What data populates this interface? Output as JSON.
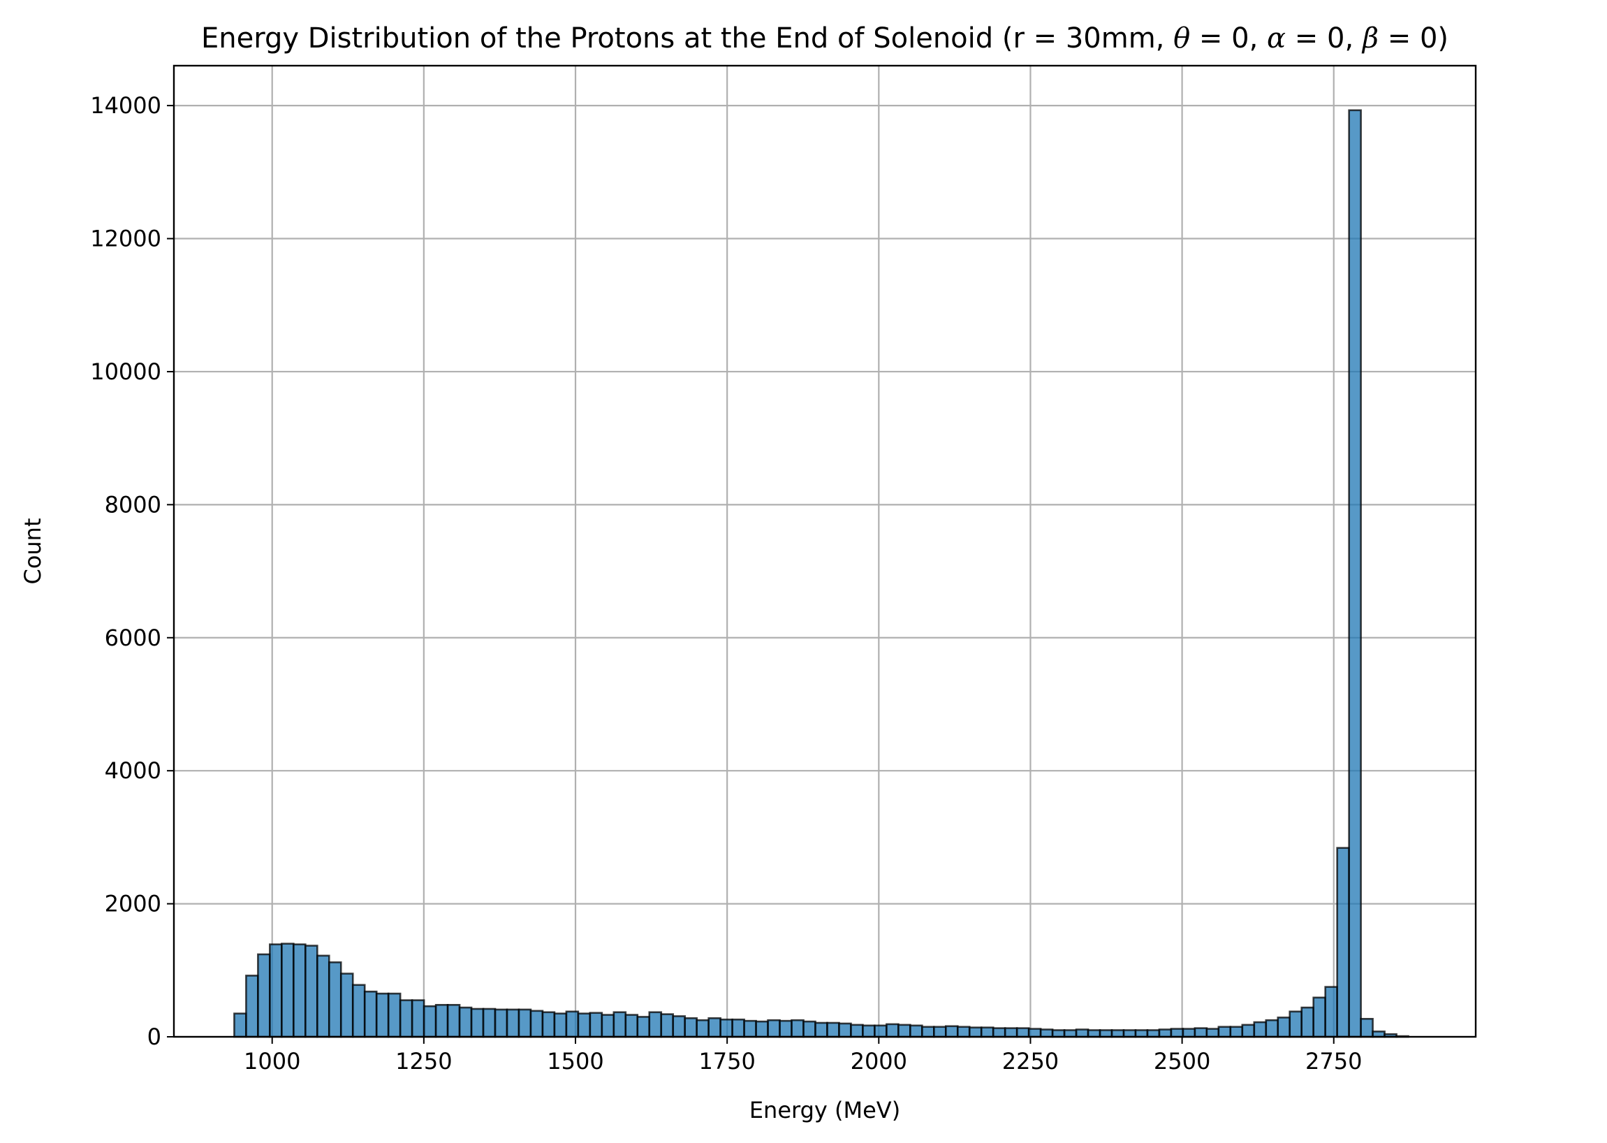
{
  "chart_data": {
    "type": "bar",
    "title_main": "Energy Distribution of the Protons at the End of Solenoid (r = 30mm, ",
    "title_theta": "θ",
    "title_alpha": "α",
    "title_beta": "β",
    "title_eq0": " = 0, ",
    "title_close": " = 0)",
    "xlabel": "Energy (MeV)",
    "ylabel": "Count",
    "xlim": [
      838,
      2984
    ],
    "ylim": [
      0,
      14600
    ],
    "xticks": [
      1000,
      1250,
      1500,
      1750,
      2000,
      2250,
      2500,
      2750
    ],
    "yticks": [
      0,
      2000,
      4000,
      6000,
      8000,
      10000,
      12000,
      14000
    ],
    "grid": true,
    "bin_start": 937.5,
    "bin_width": 19.55,
    "values": [
      350,
      920,
      1240,
      1390,
      1400,
      1390,
      1370,
      1220,
      1120,
      950,
      780,
      680,
      650,
      650,
      550,
      550,
      460,
      480,
      480,
      440,
      420,
      420,
      410,
      410,
      410,
      390,
      370,
      350,
      380,
      350,
      360,
      330,
      370,
      330,
      300,
      370,
      340,
      310,
      280,
      250,
      280,
      260,
      260,
      240,
      230,
      250,
      240,
      250,
      230,
      210,
      210,
      200,
      180,
      170,
      170,
      190,
      180,
      170,
      150,
      150,
      160,
      150,
      140,
      140,
      130,
      130,
      130,
      120,
      110,
      100,
      100,
      110,
      100,
      100,
      100,
      100,
      100,
      100,
      110,
      120,
      120,
      130,
      120,
      150,
      150,
      180,
      220,
      250,
      290,
      380,
      440,
      590,
      750,
      2840,
      13930,
      270,
      80,
      40,
      10
    ]
  }
}
